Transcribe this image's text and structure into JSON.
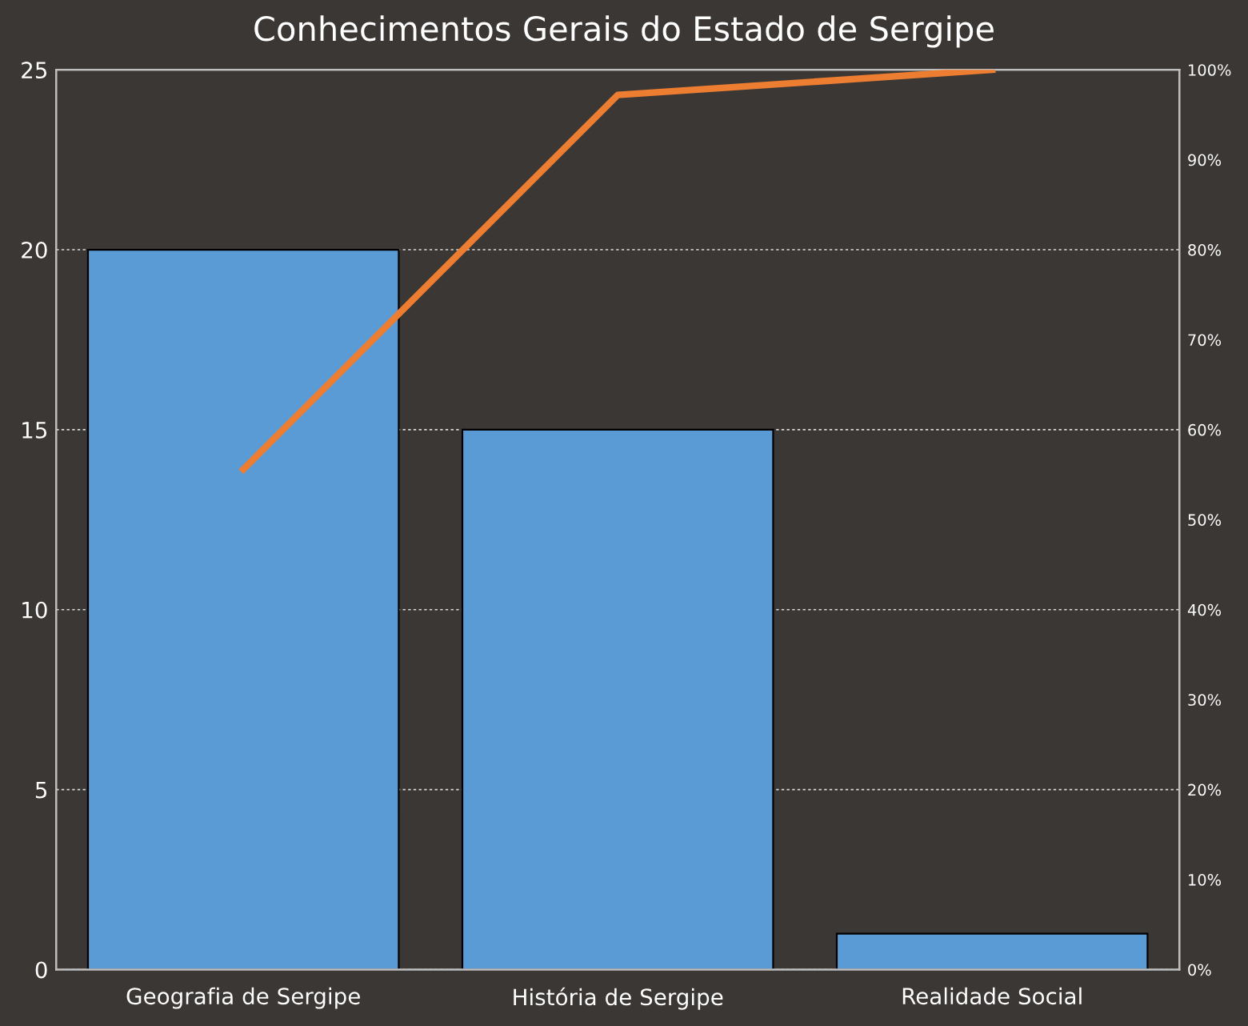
{
  "chart_data": {
    "type": "bar",
    "title": "Conhecimentos Gerais do Estado de Sergipe",
    "categories": [
      "Geografia de Sergipe",
      "História de Sergipe",
      "Realidade Social"
    ],
    "series": [
      {
        "color": "#5b9bd5",
        "values": [
          20,
          15,
          1
        ]
      },
      {
        "type": "line",
        "axis": "y2",
        "color": "#ed7d31",
        "values": [
          55.6,
          97.2,
          100
        ]
      }
    ],
    "ylim": [
      0,
      25
    ],
    "yticks": [
      0,
      5,
      10,
      15,
      20,
      25
    ],
    "y2lim": [
      0,
      100
    ],
    "y2ticks": [
      {
        "value": 0,
        "label": "0%"
      },
      {
        "value": 10,
        "label": "10%"
      },
      {
        "value": 20,
        "label": "20%"
      },
      {
        "value": 30,
        "label": "30%"
      },
      {
        "value": 40,
        "label": "40%"
      },
      {
        "value": 50,
        "label": "50%"
      },
      {
        "value": 60,
        "label": "60%"
      },
      {
        "value": 70,
        "label": "70%"
      },
      {
        "value": 80,
        "label": "80%"
      },
      {
        "value": 90,
        "label": "90%"
      },
      {
        "value": 100,
        "label": "100%"
      }
    ],
    "grid": "y",
    "marker": "none",
    "line_style": "solid"
  }
}
